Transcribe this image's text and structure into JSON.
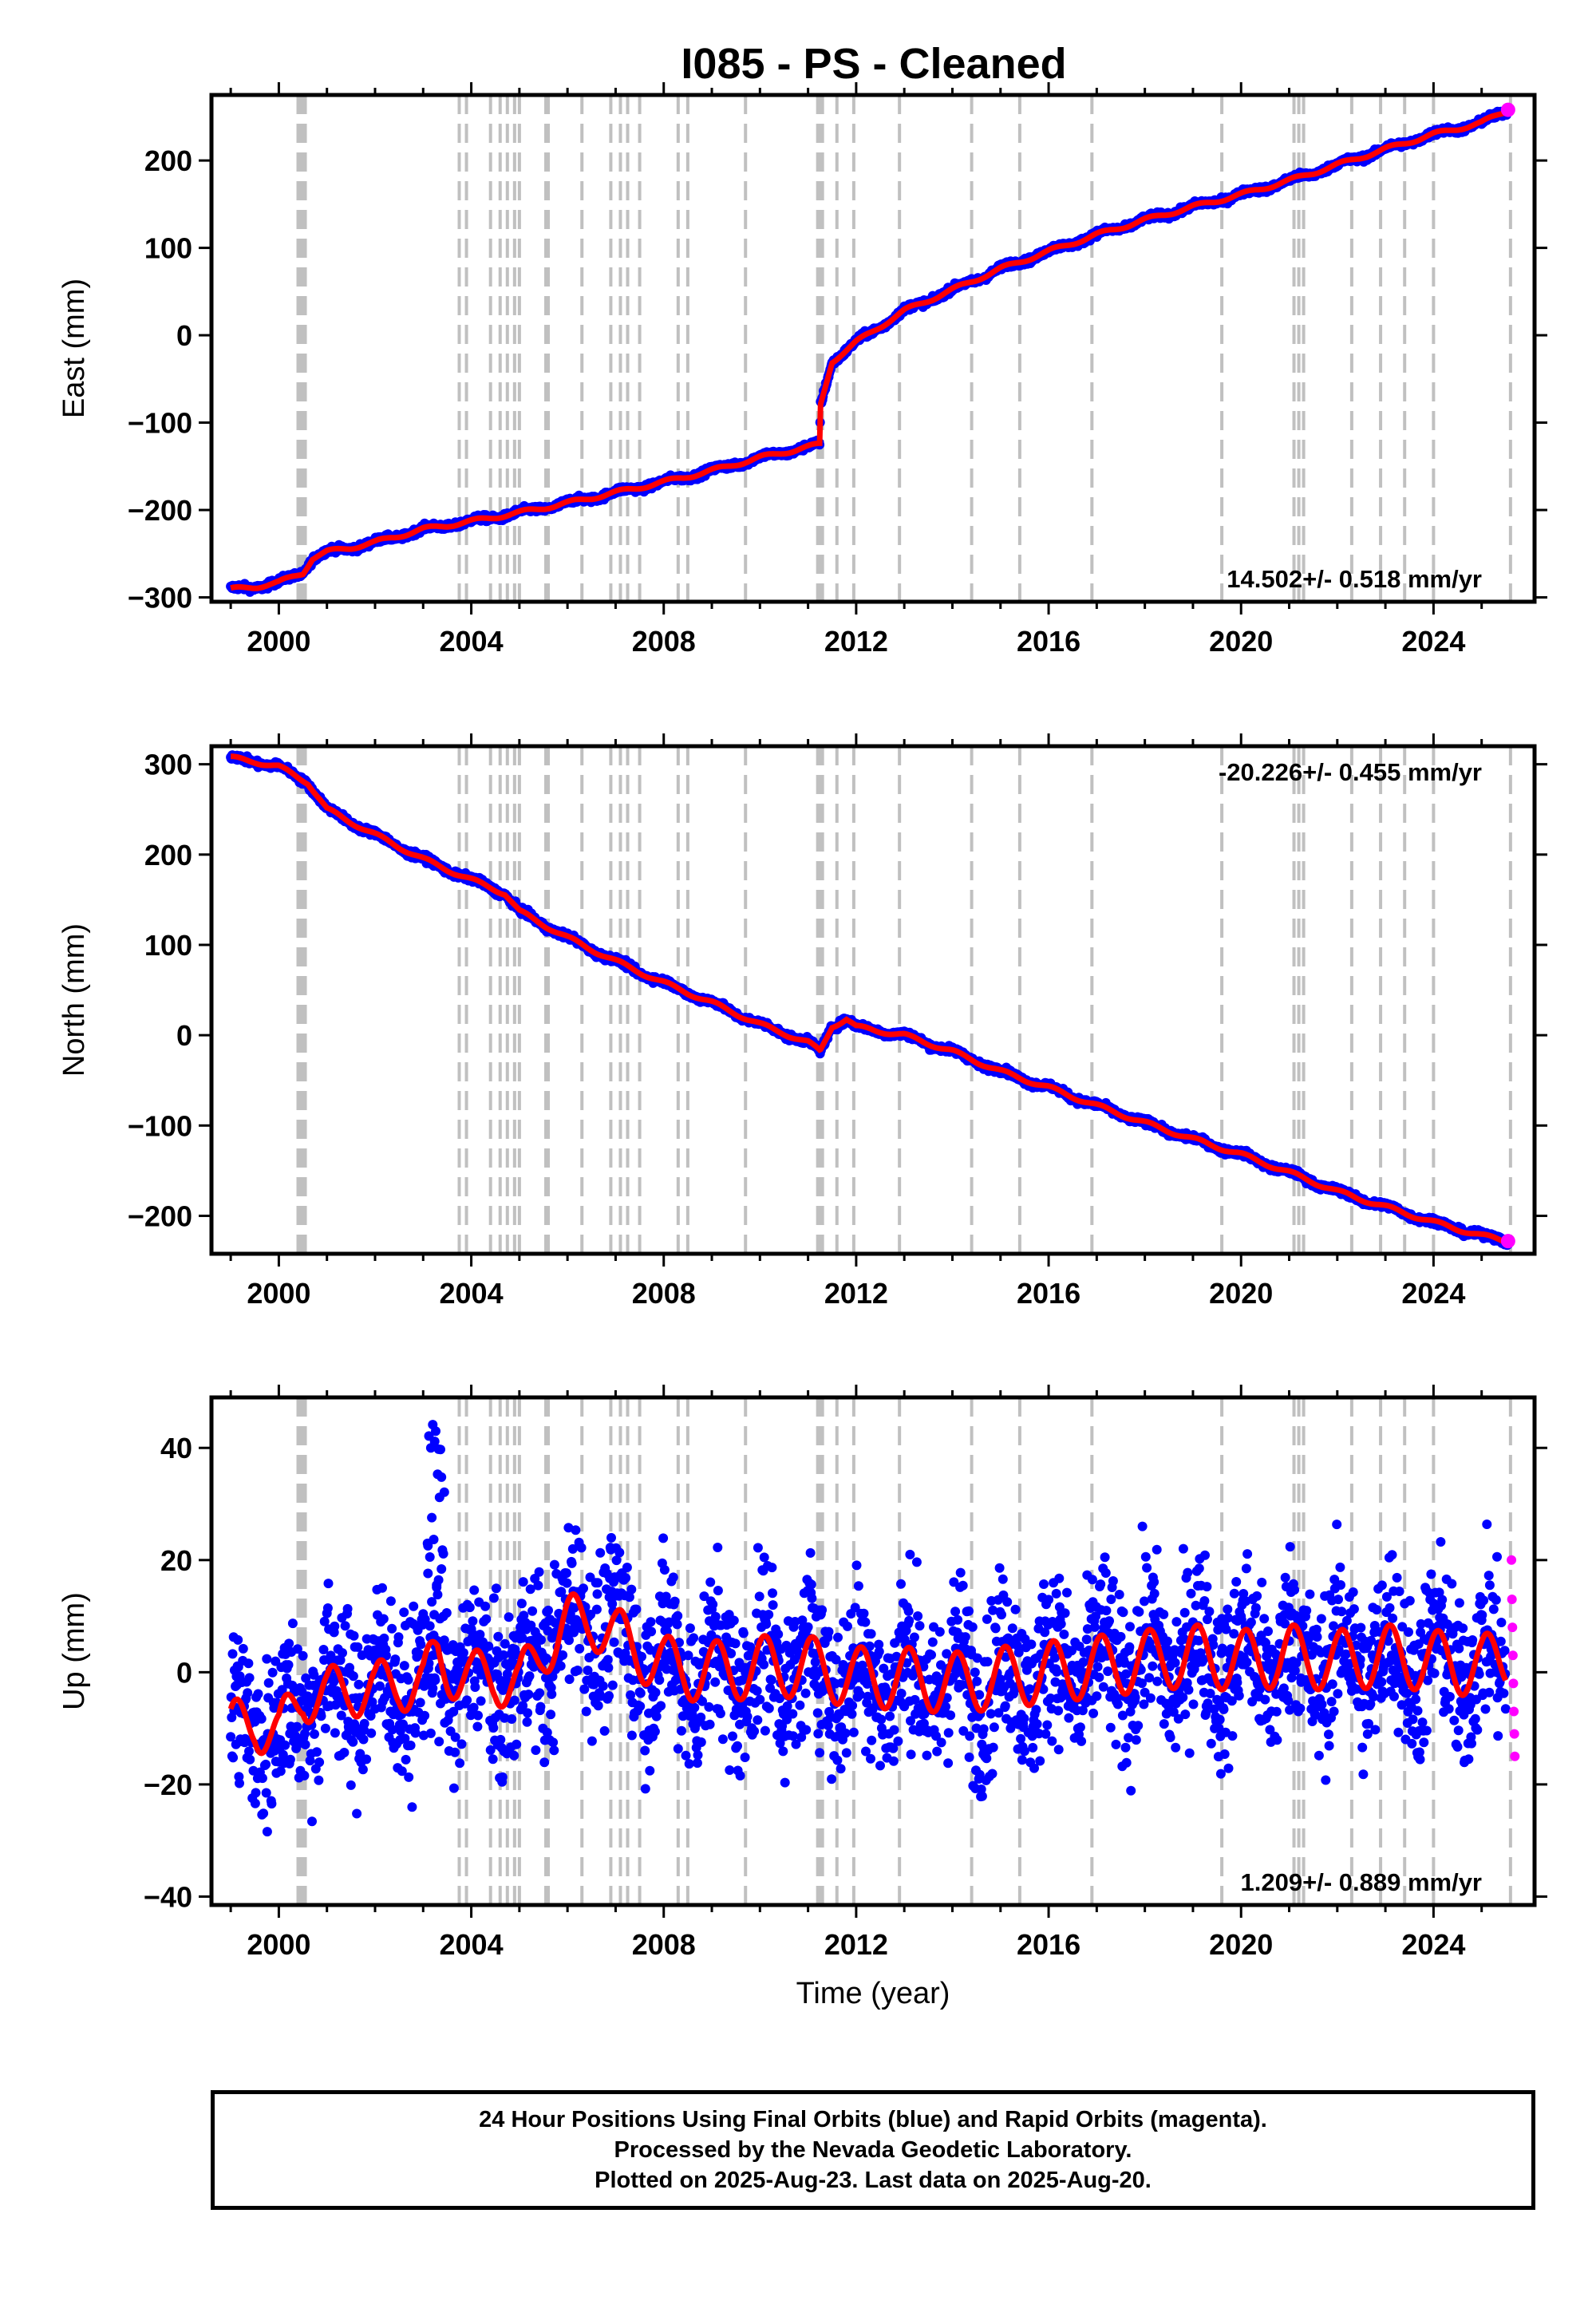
{
  "title": "I085  - PS - Cleaned",
  "footer": {
    "line1": "24 Hour Positions Using Final Orbits (blue) and Rapid Orbits (magenta).",
    "line2": "Processed by the Nevada Geodetic Laboratory.",
    "line3": "Plotted on 2025-Aug-23. Last data on 2025-Aug-20."
  },
  "colors": {
    "final": "#0000ff",
    "rapid": "#ff00ff",
    "model": "#ff0000",
    "steps": "#c0c0c0"
  },
  "chart_data": [
    {
      "type": "scatter",
      "ylabel": "East (mm)",
      "xlabel": "",
      "xlim": [
        1998.6,
        2026.1
      ],
      "ylim": [
        -305,
        275
      ],
      "xticks": [
        2000,
        2004,
        2008,
        2012,
        2016,
        2020,
        2024
      ],
      "yticks": [
        -300,
        -200,
        -100,
        0,
        100,
        200
      ],
      "rate_label": "14.502+/- 0.518 mm/yr",
      "rate_position": "bottom-right",
      "series": [
        {
          "name": "Final Orbits",
          "color": "#0000ff",
          "x": [
            1999.0,
            1999.5,
            2000.0,
            2000.5,
            2000.7,
            2001.0,
            2001.5,
            2002.0,
            2003.0,
            2004.0,
            2005.0,
            2006.0,
            2007.0,
            2008.0,
            2009.0,
            2010.0,
            2011.0,
            2011.24,
            2011.26,
            2011.5,
            2012.0,
            2013.0,
            2014.0,
            2015.0,
            2016.0,
            2017.0,
            2018.0,
            2019.0,
            2020.0,
            2021.0,
            2022.0,
            2023.0,
            2024.0,
            2025.0,
            2025.55
          ],
          "y": [
            -291,
            -288,
            -283,
            -272,
            -255,
            -248,
            -243,
            -237,
            -222,
            -213,
            -203,
            -192,
            -180,
            -168,
            -155,
            -140,
            -128,
            -125,
            -80,
            -30,
            -8,
            28,
            52,
            76,
            96,
            115,
            132,
            147,
            161,
            177,
            195,
            213,
            230,
            243,
            258
          ]
        }
      ],
      "steps": [
        2000.4,
        2000.45,
        2000.5,
        2000.55,
        2003.75,
        2003.9,
        2004.4,
        2004.6,
        2004.75,
        2004.9,
        2005.0,
        2005.55,
        2005.6,
        2006.3,
        2006.9,
        2007.1,
        2007.25,
        2007.5,
        2008.3,
        2008.5,
        2009.7,
        2011.2,
        2011.25,
        2011.3,
        2011.6,
        2011.95,
        2012.9,
        2014.4,
        2015.4,
        2016.9,
        2019.6,
        2021.1,
        2021.2,
        2021.3,
        2022.3,
        2022.9,
        2023.4,
        2024.0,
        2025.6
      ]
    },
    {
      "type": "scatter",
      "ylabel": "North (mm)",
      "xlabel": "",
      "xlim": [
        1998.6,
        2026.1
      ],
      "ylim": [
        -242,
        320
      ],
      "xticks": [
        2000,
        2004,
        2008,
        2012,
        2016,
        2020,
        2024
      ],
      "yticks": [
        -200,
        -100,
        0,
        100,
        200,
        300
      ],
      "rate_label": "-20.226+/- 0.455 mm/yr",
      "rate_position": "top-right",
      "series": [
        {
          "name": "Final Orbits",
          "color": "#0000ff",
          "x": [
            1999.0,
            1999.5,
            2000.0,
            2000.6,
            2001.0,
            2002.0,
            2003.0,
            2004.0,
            2004.7,
            2005.0,
            2006.0,
            2007.0,
            2008.0,
            2009.0,
            2010.0,
            2011.0,
            2011.25,
            2011.5,
            2011.8,
            2012.0,
            2013.0,
            2014.0,
            2015.0,
            2016.0,
            2017.0,
            2018.0,
            2019.0,
            2020.0,
            2021.0,
            2022.0,
            2023.0,
            2024.0,
            2025.0,
            2025.55
          ],
          "y": [
            307,
            303,
            297,
            280,
            250,
            222,
            195,
            172,
            157,
            137,
            108,
            82,
            58,
            36,
            12,
            -8,
            -18,
            10,
            18,
            9,
            0,
            -18,
            -40,
            -58,
            -78,
            -97,
            -115,
            -132,
            -152,
            -173,
            -190,
            -207,
            -222,
            -228
          ]
        }
      ],
      "steps": [
        2000.4,
        2000.45,
        2000.5,
        2000.55,
        2003.75,
        2003.9,
        2004.4,
        2004.6,
        2004.75,
        2004.9,
        2005.0,
        2005.55,
        2005.6,
        2006.3,
        2006.9,
        2007.1,
        2007.25,
        2007.5,
        2008.3,
        2008.5,
        2009.7,
        2011.2,
        2011.25,
        2011.3,
        2011.6,
        2011.95,
        2012.9,
        2014.4,
        2015.4,
        2016.9,
        2019.6,
        2021.1,
        2021.2,
        2021.3,
        2022.3,
        2022.9,
        2023.4,
        2024.0,
        2025.6
      ]
    },
    {
      "type": "scatter",
      "ylabel": "Up (mm)",
      "xlabel": "Time (year)",
      "xlim": [
        1998.6,
        2026.1
      ],
      "ylim": [
        -41.5,
        49
      ],
      "xticks": [
        2000,
        2004,
        2008,
        2012,
        2016,
        2020,
        2024
      ],
      "yticks": [
        -40,
        -20,
        0,
        20,
        40
      ],
      "rate_label": "1.209+/- 0.889 mm/yr",
      "rate_position": "bottom-right",
      "series": [
        {
          "name": "Final Orbits",
          "color": "#0000ff",
          "x": [
            1999.0,
            1999.5,
            2000.0,
            2000.5,
            2001.0,
            2001.5,
            2002.0,
            2002.5,
            2003.0,
            2003.3,
            2004.0,
            2004.5,
            2005.0,
            2005.5,
            2006.0,
            2006.5,
            2007.0,
            2007.5,
            2008.0,
            2009.0,
            2010.0,
            2011.0,
            2012.0,
            2013.0,
            2014.0,
            2015.0,
            2016.0,
            2017.0,
            2018.0,
            2019.0,
            2020.0,
            2021.0,
            2022.0,
            2023.0,
            2024.0,
            2025.0,
            2025.5
          ],
          "y": [
            -11,
            -8,
            -12,
            -3,
            -5,
            -2,
            -4,
            -1,
            -3,
            3,
            -2,
            0,
            -3,
            5,
            8,
            10,
            6,
            4,
            1,
            0,
            1,
            1,
            -1,
            -1,
            -2,
            -1,
            0,
            1,
            2,
            3,
            2,
            3,
            2,
            3,
            2,
            1,
            3
          ]
        },
        {
          "name": "Rapid Orbits",
          "color": "#ff00ff",
          "x": [
            2025.62,
            2025.63,
            2025.64,
            2025.65,
            2025.66,
            2025.67,
            2025.68,
            2025.69
          ],
          "y": [
            20,
            13,
            8,
            3,
            -2,
            -7,
            -11,
            -15
          ]
        }
      ],
      "steps": [
        2000.4,
        2000.45,
        2000.5,
        2000.55,
        2003.75,
        2003.9,
        2004.4,
        2004.6,
        2004.75,
        2004.9,
        2005.0,
        2005.55,
        2005.6,
        2006.3,
        2006.9,
        2007.1,
        2007.25,
        2007.5,
        2008.3,
        2008.5,
        2009.7,
        2011.2,
        2011.25,
        2011.3,
        2011.6,
        2011.95,
        2012.9,
        2014.4,
        2015.4,
        2016.9,
        2019.6,
        2021.1,
        2021.2,
        2021.3,
        2022.3,
        2022.9,
        2023.4,
        2024.0,
        2025.6
      ]
    }
  ]
}
